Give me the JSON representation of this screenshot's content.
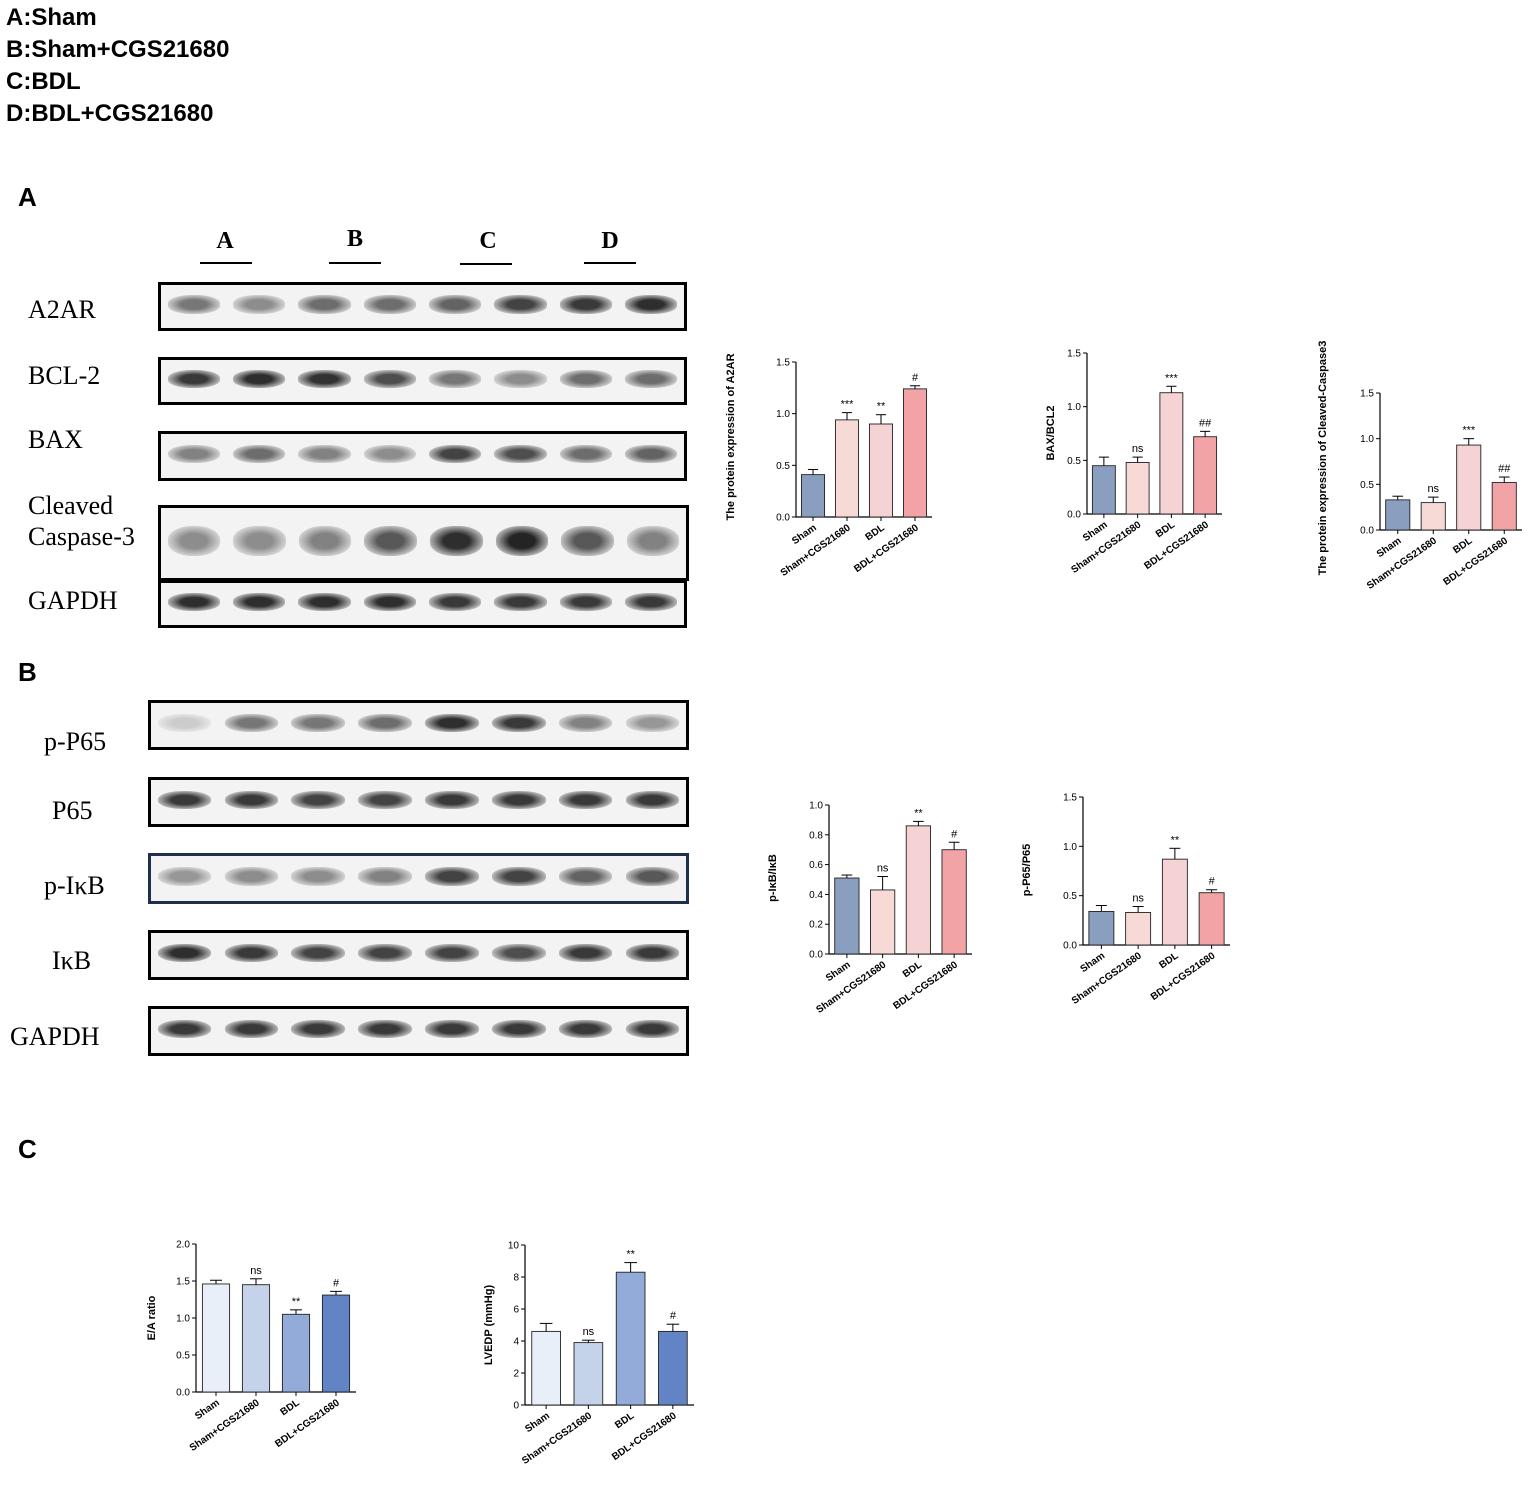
{
  "legend": [
    "A:Sham",
    "B:Sham+CGS21680",
    "C:BDL",
    "D:BDL+CGS21680"
  ],
  "panels": {
    "a": "A",
    "b": "B",
    "c": "C"
  },
  "lane_groups": [
    "A",
    "B",
    "C",
    "D"
  ],
  "blots_a": [
    {
      "label": "A2AR",
      "intensity": [
        0.55,
        0.45,
        0.6,
        0.6,
        0.65,
        0.8,
        0.85,
        0.9
      ]
    },
    {
      "label": "BCL-2",
      "intensity": [
        0.85,
        0.9,
        0.88,
        0.75,
        0.55,
        0.45,
        0.6,
        0.6
      ]
    },
    {
      "label": "BAX",
      "intensity": [
        0.5,
        0.6,
        0.5,
        0.45,
        0.8,
        0.75,
        0.6,
        0.65
      ]
    },
    {
      "label": "Cleaved\nCaspase-3",
      "intensity": [
        0.45,
        0.45,
        0.5,
        0.7,
        0.9,
        0.95,
        0.7,
        0.5
      ]
    },
    {
      "label": "GAPDH",
      "intensity": [
        0.9,
        0.9,
        0.9,
        0.9,
        0.85,
        0.85,
        0.85,
        0.85
      ]
    }
  ],
  "blots_b": [
    {
      "label": "p-P65",
      "intensity": [
        0.15,
        0.55,
        0.55,
        0.6,
        0.9,
        0.85,
        0.5,
        0.4
      ]
    },
    {
      "label": "P65",
      "intensity": [
        0.85,
        0.85,
        0.8,
        0.8,
        0.85,
        0.85,
        0.85,
        0.85
      ]
    },
    {
      "label": "p-IκB",
      "intensity": [
        0.4,
        0.45,
        0.45,
        0.5,
        0.8,
        0.8,
        0.65,
        0.7
      ]
    },
    {
      "label": "IκB",
      "intensity": [
        0.9,
        0.85,
        0.8,
        0.8,
        0.8,
        0.75,
        0.85,
        0.85
      ]
    },
    {
      "label": "GAPDH",
      "intensity": [
        0.85,
        0.85,
        0.85,
        0.85,
        0.85,
        0.85,
        0.85,
        0.85
      ]
    }
  ],
  "chart_data": [
    {
      "type": "bar",
      "ylabel": "The protein expression of A2AR",
      "categories": [
        "Sham",
        "Sham+CGS21680",
        "BDL",
        "BDL+CGS21680"
      ],
      "values": [
        0.41,
        0.94,
        0.9,
        1.24
      ],
      "errors": [
        0.05,
        0.07,
        0.09,
        0.03
      ],
      "annotations": [
        "",
        "***",
        "**",
        "#"
      ],
      "colors": [
        "#8a9ec0",
        "#f7dad6",
        "#f5d2d4",
        "#f1a3a6"
      ],
      "yticks": [
        0.0,
        0.5,
        1.0,
        1.5
      ],
      "yticklabels": [
        "0.0",
        "0.5",
        "1.0",
        "1.5"
      ],
      "ylim": [
        0,
        1.5
      ]
    },
    {
      "type": "bar",
      "ylabel": "BAX/BCL2",
      "categories": [
        "Sham",
        "Sham+CGS21680",
        "BDL",
        "BDL+CGS21680"
      ],
      "values": [
        0.45,
        0.48,
        1.13,
        0.72
      ],
      "errors": [
        0.08,
        0.05,
        0.06,
        0.05
      ],
      "annotations": [
        "",
        "ns",
        "***",
        "##"
      ],
      "colors": [
        "#8a9ec0",
        "#f7dad6",
        "#f5d2d4",
        "#f1a3a6"
      ],
      "yticks": [
        0.0,
        0.5,
        1.0,
        1.5
      ],
      "yticklabels": [
        "0.0",
        "0.5",
        "1.0",
        "1.5"
      ],
      "ylim": [
        0,
        1.5
      ]
    },
    {
      "type": "bar",
      "ylabel": "The protein expression of Cleaved-Caspase3",
      "categories": [
        "Sham",
        "Sham+CGS21680",
        "BDL",
        "BDL+CGS21680"
      ],
      "values": [
        0.33,
        0.3,
        0.93,
        0.52
      ],
      "errors": [
        0.04,
        0.06,
        0.07,
        0.06
      ],
      "annotations": [
        "",
        "ns",
        "***",
        "##"
      ],
      "colors": [
        "#8a9ec0",
        "#f7dad6",
        "#f5d2d4",
        "#f1a3a6"
      ],
      "yticks": [
        0.0,
        0.5,
        1.0,
        1.5
      ],
      "yticklabels": [
        "0.0",
        "0.5",
        "1.0",
        "1.5"
      ],
      "ylim": [
        0,
        1.5
      ]
    },
    {
      "type": "bar",
      "ylabel": "p-IκB/IκB",
      "categories": [
        "Sham",
        "Sham+CGS21680",
        "BDL",
        "BDL+CGS21680"
      ],
      "values": [
        0.51,
        0.43,
        0.86,
        0.7
      ],
      "errors": [
        0.02,
        0.09,
        0.03,
        0.05
      ],
      "annotations": [
        "",
        "ns",
        "**",
        "#"
      ],
      "colors": [
        "#8a9ec0",
        "#f7dad6",
        "#f5d2d4",
        "#f1a3a6"
      ],
      "yticks": [
        0.0,
        0.2,
        0.4,
        0.6,
        0.8,
        1.0
      ],
      "yticklabels": [
        "0.0",
        "0.2",
        "0.4",
        "0.6",
        "0.8",
        "1.0"
      ],
      "ylim": [
        0,
        1.0
      ]
    },
    {
      "type": "bar",
      "ylabel": "p-P65/P65",
      "categories": [
        "Sham",
        "Sham+CGS21680",
        "BDL",
        "BDL+CGS21680"
      ],
      "values": [
        0.34,
        0.33,
        0.87,
        0.53
      ],
      "errors": [
        0.06,
        0.06,
        0.11,
        0.03
      ],
      "annotations": [
        "",
        "ns",
        "**",
        "#"
      ],
      "colors": [
        "#8a9ec0",
        "#f7dad6",
        "#f5d2d4",
        "#f1a3a6"
      ],
      "yticks": [
        0.0,
        0.5,
        1.0,
        1.5
      ],
      "yticklabels": [
        "0.0",
        "0.5",
        "1.0",
        "1.5"
      ],
      "ylim": [
        0,
        1.5
      ]
    },
    {
      "type": "bar",
      "ylabel": "E/A ratio",
      "categories": [
        "Sham",
        "Sham+CGS21680",
        "BDL",
        "BDL+CGS21680"
      ],
      "values": [
        1.46,
        1.45,
        1.05,
        1.31
      ],
      "errors": [
        0.05,
        0.08,
        0.06,
        0.05
      ],
      "annotations": [
        "",
        "ns",
        "**",
        "#"
      ],
      "colors": [
        "#e9eff8",
        "#c4d2ea",
        "#92abd8",
        "#6283c4"
      ],
      "yticks": [
        0.0,
        0.5,
        1.0,
        1.5,
        2.0
      ],
      "yticklabels": [
        "0.0",
        "0.5",
        "1.0",
        "1.5",
        "2.0"
      ],
      "ylim": [
        0,
        2.0
      ]
    },
    {
      "type": "bar",
      "ylabel": "LVEDP (mmHg)",
      "categories": [
        "Sham",
        "Sham+CGS21680",
        "BDL",
        "BDL+CGS21680"
      ],
      "values": [
        4.6,
        3.9,
        8.3,
        4.6
      ],
      "errors": [
        0.5,
        0.15,
        0.6,
        0.45
      ],
      "annotations": [
        "",
        "ns",
        "**",
        "#"
      ],
      "colors": [
        "#e9eff8",
        "#c4d2ea",
        "#92abd8",
        "#6283c4"
      ],
      "yticks": [
        0,
        2,
        4,
        6,
        8,
        10
      ],
      "yticklabels": [
        "0",
        "2",
        "4",
        "6",
        "8",
        "10"
      ],
      "ylim": [
        0,
        10
      ]
    }
  ]
}
